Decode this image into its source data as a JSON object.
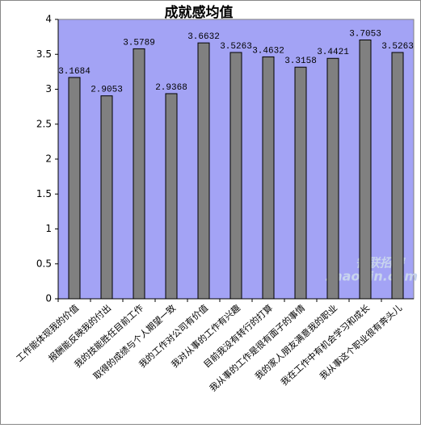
{
  "chart_data": {
    "type": "bar",
    "title": "成就感均值",
    "categories": [
      "工作能体现我的价值",
      "报酬能反映我的付出",
      "我的技能胜任目前工作",
      "取得的成绩与个人期望一致",
      "我的工作对公司有价值",
      "我对从事的工作有兴趣",
      "目前我没有转行的打算",
      "我从事的工作是很有面子的事情",
      "我的家人朋友满意我的职业",
      "我在工作中有机会学习和成长",
      "我从事这个职业很有奔头儿"
    ],
    "values": [
      3.1684,
      2.9053,
      3.5789,
      2.9368,
      3.6632,
      3.5263,
      3.4632,
      3.3158,
      3.4421,
      3.7053,
      3.5263
    ],
    "color": "#808080",
    "ylim": [
      0,
      4
    ],
    "yticks": [
      0,
      0.5,
      1,
      1.5,
      2,
      2.5,
      3,
      3.5,
      4
    ],
    "plot_background": "#a3a3f5",
    "watermark": {
      "brand": "智联招聘",
      "site": "zhaopin.com"
    }
  }
}
